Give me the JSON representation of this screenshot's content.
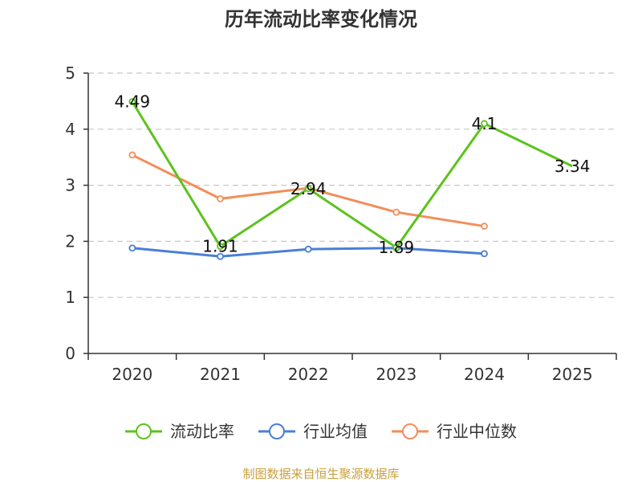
{
  "chart_data": {
    "type": "line",
    "title": "历年流动比率变化情况",
    "categories": [
      "2020",
      "2021",
      "2022",
      "2023",
      "2024",
      "2025"
    ],
    "ylim": [
      0,
      5
    ],
    "yticks": [
      0,
      1,
      2,
      3,
      4,
      5
    ],
    "grid": true,
    "legend_position": "bottom",
    "series": [
      {
        "name": "流动比率",
        "color": "#5cc31e",
        "values": [
          4.49,
          1.91,
          2.94,
          1.89,
          4.1,
          3.34
        ],
        "labels": [
          "4.49",
          "1.91",
          "2.94",
          "1.89",
          "4.1",
          "3.34"
        ],
        "markers": [
          true,
          true,
          true,
          true,
          true,
          false
        ]
      },
      {
        "name": "行业均值",
        "color": "#4a7fd6",
        "values": [
          1.88,
          1.73,
          1.86,
          1.88,
          1.78,
          null
        ]
      },
      {
        "name": "行业中位数",
        "color": "#f28e5a",
        "values": [
          3.54,
          2.76,
          2.95,
          2.52,
          2.27,
          null
        ]
      }
    ]
  },
  "footer": {
    "source": "制图数据来自恒生聚源数据库",
    "color": "#c8a040"
  }
}
